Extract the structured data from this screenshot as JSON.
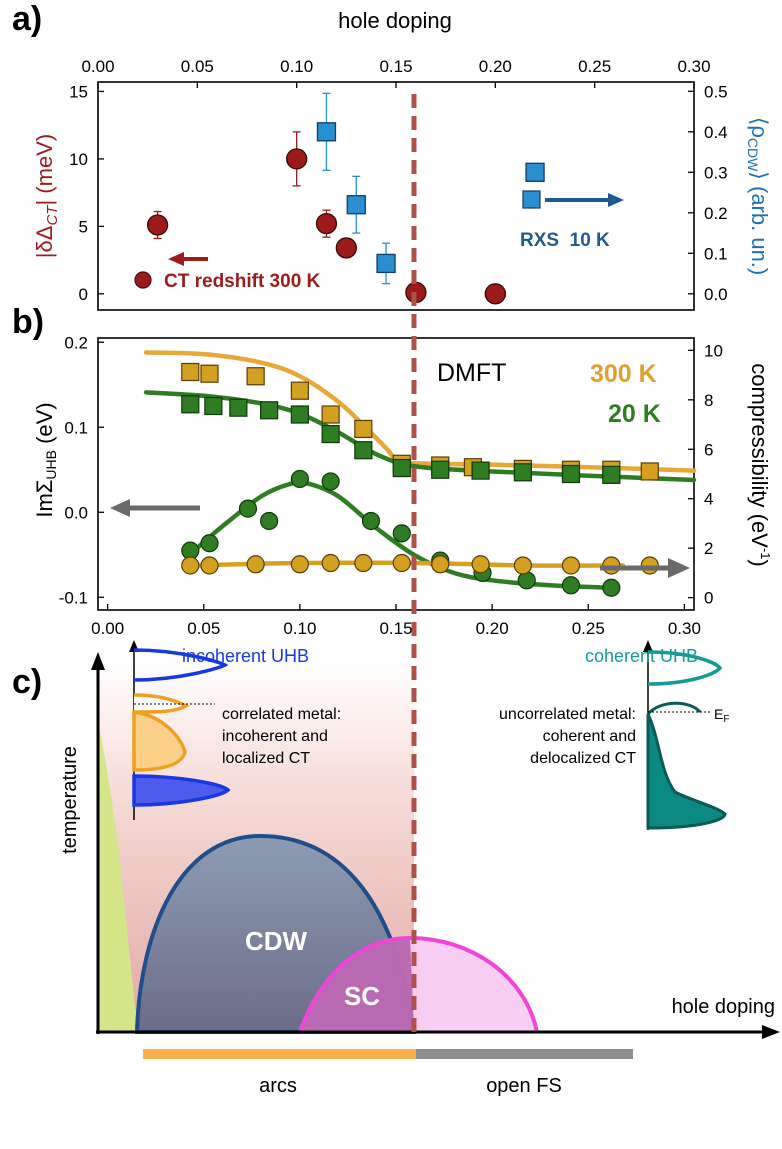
{
  "chart_data": [
    {
      "panel": "a)",
      "type": "scatter",
      "x_axis": {
        "label": "hole doping",
        "position": "top",
        "range": [
          0,
          0.3
        ],
        "ticks": [
          "0.00",
          "0.05",
          "0.10",
          "0.15",
          "0.20",
          "0.25",
          "0.30"
        ]
      },
      "y_left": {
        "label_main": "|δΔ",
        "label_sub": "CT",
        "label_end": "| (meV)",
        "range": [
          -1.2,
          15.7
        ],
        "ticks": [
          "0",
          "5",
          "10",
          "15"
        ],
        "color": "#9b1b1b"
      },
      "y_right": {
        "label": "⟨ρ_CDW⟩ (arb. un.)",
        "label_main": "⟨ρ",
        "label_sub": "CDW",
        "label_end": "⟩ (arb. un.)",
        "range": [
          -0.04,
          0.523
        ],
        "ticks": [
          "0.0",
          "0.1",
          "0.2",
          "0.3",
          "0.4",
          "0.5"
        ],
        "color": "#1f6fb2"
      },
      "series": [
        {
          "name": "CT redshift 300 K",
          "axis": "left",
          "marker": "circle",
          "color": "#9b1b1b",
          "x": [
            0.03,
            0.1,
            0.115,
            0.125,
            0.16,
            0.2
          ],
          "y": [
            5.1,
            10.0,
            5.2,
            3.4,
            0.1,
            0.0
          ],
          "xerr": [
            0.004,
            0.004,
            0.004,
            0.004,
            0.004,
            0.005
          ],
          "yerr": [
            1.0,
            2.0,
            1.0,
            0.7,
            0,
            0
          ]
        },
        {
          "name": "RXS  10 K",
          "axis": "right",
          "marker": "square",
          "color": "#2a8fd0",
          "x": [
            0.115,
            0.13,
            0.145,
            0.22
          ],
          "y": [
            0.4,
            0.22,
            0.075,
            0.3
          ],
          "xerr": [
            0.004,
            0.004,
            0.004,
            0
          ],
          "yerr": [
            0.095,
            0.07,
            0.05,
            0
          ]
        }
      ],
      "arrows": [
        "←",
        "→"
      ]
    },
    {
      "panel": "b)",
      "type": "scatter",
      "annotation": "DMFT",
      "x_axis": {
        "range": [
          -0.005,
          0.305
        ],
        "ticks": [
          "0.00",
          "0.05",
          "0.10",
          "0.15",
          "0.20",
          "0.25",
          "0.30"
        ]
      },
      "y_left": {
        "label_main": "ImΣ",
        "label_sub": "UHB",
        "label_end": " (eV)",
        "range": [
          -0.115,
          0.205
        ],
        "ticks": [
          "-0.1",
          "0.0",
          "0.1",
          "0.2"
        ]
      },
      "y_right": {
        "label_main": "compressibility (eV",
        "label_sup": "-1",
        "label_end": ")",
        "range": [
          -0.5,
          10.5
        ],
        "ticks": [
          "0",
          "2",
          "4",
          "6",
          "8",
          "10"
        ]
      },
      "series": [
        {
          "name": "300 K",
          "quantity": "ImΣ_UHB",
          "axis": "left",
          "marker": "square",
          "color": "#d4a020",
          "line_color": "#e8a838",
          "x": [
            0.043,
            0.053,
            0.077,
            0.1,
            0.116,
            0.133,
            0.153,
            0.173,
            0.19,
            0.216,
            0.241,
            0.262,
            0.282
          ],
          "y": [
            0.165,
            0.163,
            0.16,
            0.143,
            0.115,
            0.098,
            0.057,
            0.055,
            0.053,
            0.051,
            0.05,
            0.05,
            0.048
          ],
          "fit_x": [
            0.02,
            0.05,
            0.08,
            0.1,
            0.12,
            0.135,
            0.145,
            0.152,
            0.17,
            0.2,
            0.25,
            0.305
          ],
          "fit_y": [
            0.188,
            0.186,
            0.176,
            0.16,
            0.13,
            0.098,
            0.075,
            0.06,
            0.057,
            0.056,
            0.053,
            0.049
          ]
        },
        {
          "name": "20 K",
          "quantity": "ImΣ_UHB",
          "axis": "left",
          "marker": "square",
          "color": "#2e7d23",
          "line_color": "#2e7d23",
          "x": [
            0.043,
            0.055,
            0.068,
            0.084,
            0.1,
            0.116,
            0.133,
            0.153,
            0.173,
            0.194,
            0.216,
            0.241,
            0.262
          ],
          "y": [
            0.127,
            0.125,
            0.123,
            0.12,
            0.115,
            0.092,
            0.073,
            0.052,
            0.05,
            0.049,
            0.047,
            0.045,
            0.044
          ],
          "fit_x": [
            0.02,
            0.05,
            0.08,
            0.1,
            0.12,
            0.14,
            0.16,
            0.2,
            0.25,
            0.305
          ],
          "fit_y": [
            0.141,
            0.137,
            0.128,
            0.116,
            0.094,
            0.068,
            0.054,
            0.048,
            0.043,
            0.038
          ]
        },
        {
          "name": "20 K compressibility",
          "quantity": "compressibility",
          "axis": "right",
          "marker": "circle",
          "color": "#2e7d23",
          "line_color": "#2e7d23",
          "x": [
            0.043,
            0.053,
            0.073,
            0.084,
            0.1,
            0.116,
            0.137,
            0.153,
            0.173,
            0.195,
            0.218,
            0.241,
            0.262
          ],
          "y": [
            1.9,
            2.2,
            3.6,
            3.1,
            4.8,
            4.7,
            3.1,
            2.6,
            1.5,
            1.0,
            0.7,
            0.5,
            0.4
          ],
          "fit_x": [
            0.045,
            0.06,
            0.08,
            0.095,
            0.105,
            0.12,
            0.14,
            0.16,
            0.18,
            0.2,
            0.23,
            0.262
          ],
          "fit_y": [
            1.9,
            2.9,
            4.1,
            4.6,
            4.6,
            4.1,
            2.8,
            1.7,
            1.0,
            0.7,
            0.5,
            0.4
          ]
        },
        {
          "name": "300 K compressibility",
          "quantity": "compressibility",
          "axis": "right",
          "marker": "circle",
          "color": "#d4a020",
          "line_color": "#d4a020",
          "x": [
            0.043,
            0.053,
            0.077,
            0.1,
            0.116,
            0.133,
            0.153,
            0.173,
            0.194,
            0.216,
            0.241,
            0.262,
            0.282
          ],
          "y": [
            1.3,
            1.3,
            1.35,
            1.35,
            1.4,
            1.4,
            1.4,
            1.35,
            1.35,
            1.3,
            1.3,
            1.3,
            1.3
          ],
          "fit_x": [
            0.043,
            0.1,
            0.16,
            0.22,
            0.268
          ],
          "fit_y": [
            1.3,
            1.4,
            1.4,
            1.3,
            1.3
          ]
        }
      ],
      "arrows": [
        "←",
        "→"
      ]
    },
    {
      "panel": "c)",
      "type": "diagram",
      "x_axis": {
        "label": "hole doping"
      },
      "y_axis": {
        "label": "temperature"
      },
      "regions": [
        "CDW",
        "SC"
      ],
      "annotations": {
        "incoherent_title": "incoherent UHB",
        "coherent_title": "coherent UHB",
        "left_text": [
          "correlated metal:",
          "incoherent and",
          "localized CT"
        ],
        "right_text": [
          "uncorrelated metal:",
          "coherent and",
          "delocalized CT"
        ],
        "fermi_label": "E",
        "fermi_sub": "F"
      },
      "bottom_bar": [
        "arcs",
        "open FS"
      ]
    }
  ]
}
